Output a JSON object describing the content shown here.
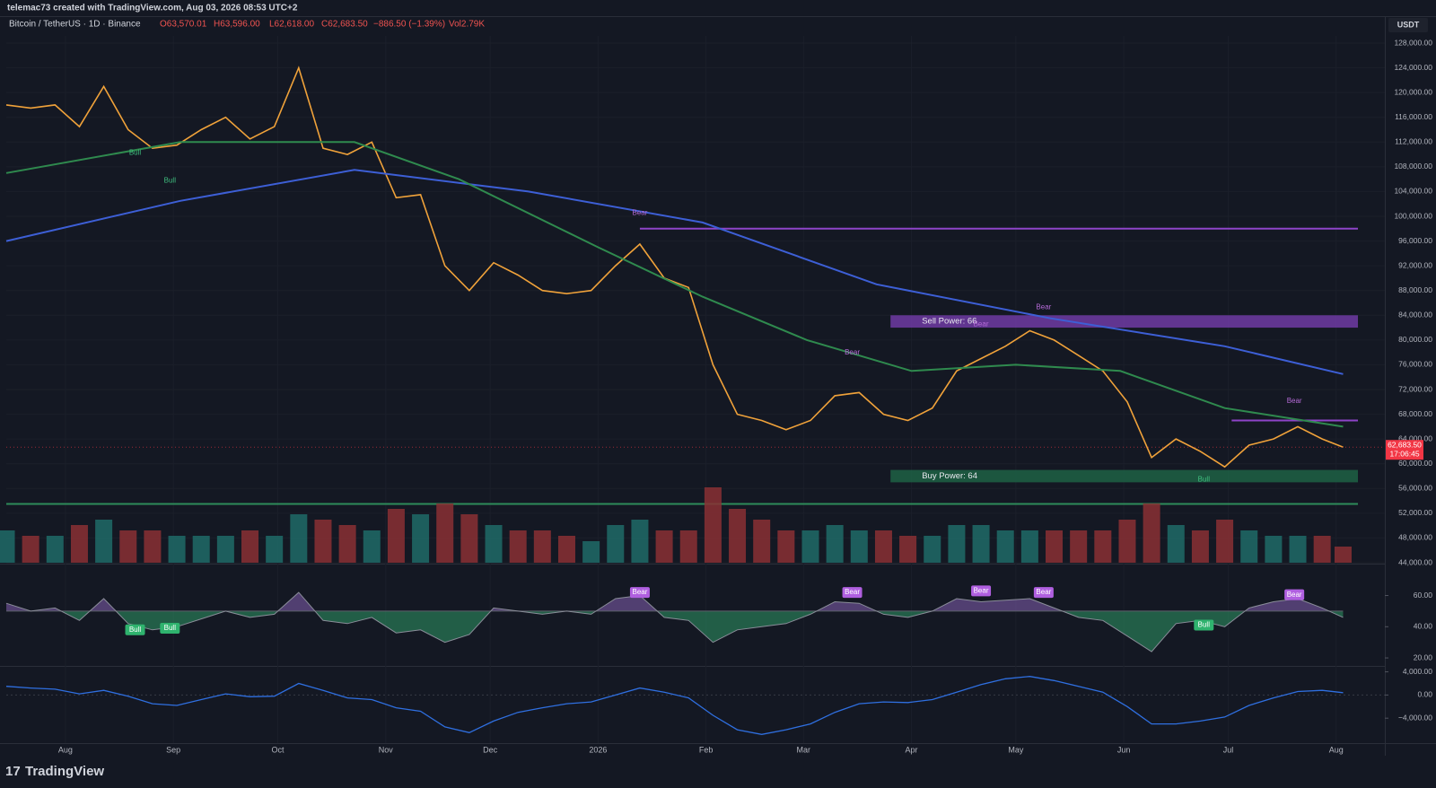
{
  "header": {
    "attribution": "telemac73 created with TradingView.com, Aug 03, 2026 08:53 UTC+2",
    "symbol": "Bitcoin / TetherUS · 1D · Binance",
    "open": "O63,570.01",
    "high": "H63,596.00",
    "low": "L62,618.00",
    "close": "C62,683.50",
    "change": "−886.50 (−1.39%)",
    "volume": "Vol2.79K",
    "currency": "USDT",
    "last_price": "62,683.50",
    "countdown": "17:06:45",
    "footer": "TradingView"
  },
  "chart_data": [
    {
      "type": "line",
      "x": [
        0,
        7,
        14,
        21,
        28,
        35,
        42,
        49,
        56,
        63,
        70,
        77,
        84,
        91,
        98,
        105,
        112,
        119,
        126,
        133,
        140,
        147,
        154,
        161,
        168,
        175,
        182,
        189,
        196,
        203,
        210,
        217,
        224,
        231,
        238,
        245,
        252,
        259,
        266,
        273,
        280,
        287,
        294,
        301,
        308,
        315,
        322,
        329,
        336,
        343,
        350,
        357,
        364,
        371,
        378,
        384
      ],
      "series": [
        {
          "color": "#f0a23a",
          "values": [
            118000,
            117500,
            118000,
            114500,
            121000,
            114000,
            111000,
            111500,
            114000,
            116000,
            112500,
            114500,
            124000,
            111000,
            110000,
            112000,
            103000,
            103500,
            92000,
            88000,
            92500,
            90500,
            88000,
            87500,
            88000,
            92000,
            95500,
            90000,
            88500,
            76000,
            68000,
            67000,
            65500,
            67000,
            71000,
            71500,
            68000,
            67000,
            69000,
            75000,
            77000,
            79000,
            81500,
            80000,
            77500,
            75000,
            70000,
            61000,
            64000,
            62000,
            59500,
            63000,
            64000,
            66000,
            64000,
            62683.5
          ]
        },
        {
          "color": "#3d5fd6",
          "x": [
            0,
            50,
            100,
            150,
            200,
            250,
            300,
            350,
            384
          ],
          "values": [
            96000,
            102500,
            107500,
            104000,
            99000,
            89000,
            83500,
            79000,
            74500
          ]
        },
        {
          "color": "#2f8a4e",
          "x": [
            0,
            50,
            100,
            130,
            170,
            200,
            230,
            260,
            290,
            320,
            350,
            384
          ],
          "values": [
            107000,
            112000,
            112000,
            106000,
            95000,
            87000,
            80000,
            75000,
            76000,
            75000,
            69000,
            66000
          ]
        }
      ],
      "xlim": [
        0,
        396
      ],
      "xticks": [
        {
          "value": 17,
          "label": "Aug"
        },
        {
          "value": 48,
          "label": "Sep"
        },
        {
          "value": 78,
          "label": "Oct"
        },
        {
          "value": 109,
          "label": "Nov"
        },
        {
          "value": 139,
          "label": "Dec"
        },
        {
          "value": 170,
          "label": "2026"
        },
        {
          "value": 201,
          "label": "Feb"
        },
        {
          "value": 229,
          "label": "Mar"
        },
        {
          "value": 260,
          "label": "Apr"
        },
        {
          "value": 290,
          "label": "May"
        },
        {
          "value": 321,
          "label": "Jun"
        },
        {
          "value": 351,
          "label": "Jul"
        },
        {
          "value": 382,
          "label": "Aug"
        }
      ],
      "ylim": [
        44000,
        128000
      ],
      "yticks": [
        {
          "value": 44000,
          "label": "44,000.00"
        },
        {
          "value": 48000,
          "label": "48,000.00"
        },
        {
          "value": 52000,
          "label": "52,000.00"
        },
        {
          "value": 56000,
          "label": "56,000.00"
        },
        {
          "value": 60000,
          "label": "60,000.00"
        },
        {
          "value": 64000,
          "label": "64,000.00"
        },
        {
          "value": 68000,
          "label": "68,000.00"
        },
        {
          "value": 72000,
          "label": "72,000.00"
        },
        {
          "value": 76000,
          "label": "76,000.00"
        },
        {
          "value": 80000,
          "label": "80,000.00"
        },
        {
          "value": 84000,
          "label": "84,000.00"
        },
        {
          "value": 88000,
          "label": "88,000.00"
        },
        {
          "value": 92000,
          "label": "92,000.00"
        },
        {
          "value": 96000,
          "label": "96,000.00"
        },
        {
          "value": 100000,
          "label": "100,000.00"
        },
        {
          "value": 104000,
          "label": "104,000.00"
        },
        {
          "value": 108000,
          "label": "108,000.00"
        },
        {
          "value": 112000,
          "label": "112,000.00"
        },
        {
          "value": 116000,
          "label": "116,000.00"
        },
        {
          "value": 120000,
          "label": "120,000.00"
        },
        {
          "value": 124000,
          "label": "124,000.00"
        },
        {
          "value": 128000,
          "label": "128,000.00"
        }
      ],
      "grid": true,
      "zones": [
        {
          "label": "Sell Power: 66",
          "x": 254,
          "from": 82000,
          "to": 84000,
          "color": "#7b3fb5"
        },
        {
          "label": "Buy Power: 64",
          "x": 254,
          "from": 57000,
          "to": 59000,
          "color": "#1f6b4a"
        }
      ],
      "levels": [
        {
          "value": 98000,
          "x": 182,
          "color": "#8e44c9"
        },
        {
          "value": 67000,
          "x": 352,
          "color": "#8e44c9"
        },
        {
          "value": 53500,
          "x": 0,
          "color": "#2e8b5a"
        }
      ],
      "annotations": [
        {
          "text": "Bear",
          "x": 182,
          "y": 100500,
          "color": "#b46ad6"
        },
        {
          "text": "Bear",
          "x": 243,
          "y": 78000,
          "color": "#b46ad6"
        },
        {
          "text": "Bear",
          "x": 280,
          "y": 82500,
          "color": "#b46ad6"
        },
        {
          "text": "Bear",
          "x": 298,
          "y": 85300,
          "color": "#b46ad6"
        },
        {
          "text": "Bear",
          "x": 370,
          "y": 70100,
          "color": "#b46ad6"
        },
        {
          "text": "Bull",
          "x": 37,
          "y": 110250,
          "color": "#3fbf7f"
        },
        {
          "text": "Bull",
          "x": 47,
          "y": 105750,
          "color": "#3fbf7f"
        },
        {
          "text": "Bull",
          "x": 344,
          "y": 57450,
          "color": "#3fbf7f"
        }
      ]
    },
    {
      "type": "bar",
      "up_color": "#1f6b67",
      "down_color": "#8a3034",
      "values": [
        6,
        5,
        5,
        7,
        8,
        6,
        6,
        5,
        5,
        5,
        6,
        5,
        9,
        8,
        7,
        6,
        10,
        9,
        11,
        9,
        7,
        6,
        6,
        5,
        4,
        7,
        8,
        6,
        6,
        14,
        10,
        8,
        6,
        6,
        7,
        6,
        6,
        5,
        5,
        7,
        7,
        6,
        6,
        6,
        6,
        6,
        8,
        11,
        7,
        6,
        8,
        6,
        5,
        5,
        5,
        3
      ],
      "ylim": [
        0,
        15
      ]
    },
    {
      "type": "area",
      "color": "#9b6fd0",
      "low_color": "#2fa36b",
      "values": [
        55,
        50,
        52,
        44,
        58,
        42,
        38,
        40,
        45,
        50,
        46,
        48,
        62,
        44,
        42,
        46,
        36,
        38,
        30,
        35,
        52,
        50,
        48,
        50,
        48,
        58,
        60,
        46,
        44,
        30,
        38,
        40,
        42,
        48,
        56,
        55,
        48,
        46,
        50,
        58,
        56,
        57,
        58,
        52,
        46,
        44,
        34,
        24,
        42,
        44,
        40,
        52,
        56,
        58,
        52,
        46
      ],
      "ylim": [
        16,
        77
      ],
      "baseline": 50,
      "yticks": [
        {
          "value": 20,
          "label": "20.00"
        },
        {
          "value": 40,
          "label": "40.00"
        },
        {
          "value": 60,
          "label": "60.00"
        }
      ],
      "annotations": [
        {
          "text": "Bear",
          "x": 182,
          "y": 62,
          "color": "#b05fe0"
        },
        {
          "text": "Bear",
          "x": 243,
          "y": 62,
          "color": "#b05fe0"
        },
        {
          "text": "Bear",
          "x": 280,
          "y": 63,
          "color": "#b05fe0"
        },
        {
          "text": "Bear",
          "x": 298,
          "y": 62,
          "color": "#b05fe0"
        },
        {
          "text": "Bear",
          "x": 370,
          "y": 60.5,
          "color": "#b05fe0"
        },
        {
          "text": "Bull",
          "x": 37,
          "y": 38,
          "color": "#2fb36e"
        },
        {
          "text": "Bull",
          "x": 47,
          "y": 39,
          "color": "#2fb36e"
        },
        {
          "text": "Bull",
          "x": 344,
          "y": 41,
          "color": "#2fb36e"
        }
      ]
    },
    {
      "type": "line",
      "color": "#2f6fe0",
      "values": [
        1500,
        1200,
        1000,
        200,
        800,
        -200,
        -1500,
        -1800,
        -800,
        200,
        -300,
        -200,
        2000,
        800,
        -500,
        -800,
        -2200,
        -2800,
        -5500,
        -6500,
        -4500,
        -3000,
        -2200,
        -1500,
        -1200,
        0,
        1200,
        500,
        -500,
        -3500,
        -6000,
        -6800,
        -6000,
        -5000,
        -3000,
        -1500,
        -1200,
        -1300,
        -800,
        500,
        1800,
        2800,
        3200,
        2500,
        1500,
        500,
        -2000,
        -5000,
        -5000,
        -4500,
        -3800,
        -1800,
        -500,
        600,
        800,
        400
      ],
      "ylim": [
        -8000,
        4400
      ],
      "yticks": [
        {
          "value": -4000,
          "label": "−4,000.00"
        },
        {
          "value": 0,
          "label": "0.00"
        },
        {
          "value": 4000,
          "label": "4,000.00"
        }
      ]
    }
  ]
}
